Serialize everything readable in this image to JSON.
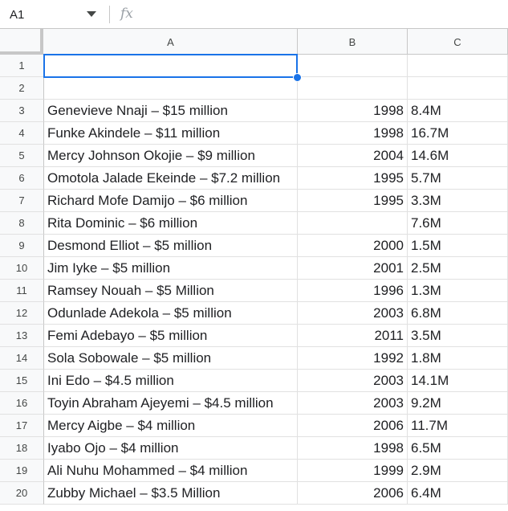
{
  "name_box": {
    "value": "A1"
  },
  "formula_bar": {
    "fx_label": "fx",
    "value": ""
  },
  "columns": [
    "A",
    "B",
    "C"
  ],
  "rows": [
    {
      "num": "1",
      "a": "",
      "b": "",
      "c": ""
    },
    {
      "num": "2",
      "a": "",
      "b": "",
      "c": ""
    },
    {
      "num": "3",
      "a": "Genevieve Nnaji – $15 million",
      "b": "1998",
      "c": "8.4M"
    },
    {
      "num": "4",
      "a": "Funke Akindele – $11 million",
      "b": "1998",
      "c": "16.7M"
    },
    {
      "num": "5",
      "a": "Mercy Johnson Okojie – $9 million",
      "b": "2004",
      "c": "14.6M"
    },
    {
      "num": "6",
      "a": "Omotola Jalade Ekeinde – $7.2 million",
      "b": "1995",
      "c": "5.7M"
    },
    {
      "num": "7",
      "a": "Richard Mofe Damijo – $6 million",
      "b": "1995",
      "c": "3.3M"
    },
    {
      "num": "8",
      "a": "Rita Dominic – $6 million",
      "b": "",
      "c": "7.6M"
    },
    {
      "num": "9",
      "a": "Desmond Elliot – $5 million",
      "b": "2000",
      "c": "1.5M"
    },
    {
      "num": "10",
      "a": "Jim Iyke – $5 million",
      "b": "2001",
      "c": "2.5M"
    },
    {
      "num": "11",
      "a": "Ramsey Nouah – $5 Million",
      "b": "1996",
      "c": "1.3M"
    },
    {
      "num": "12",
      "a": "Odunlade Adekola – $5 million",
      "b": "2003",
      "c": "6.8M"
    },
    {
      "num": "13",
      "a": "Femi Adebayo – $5 million",
      "b": "2011",
      "c": "3.5M"
    },
    {
      "num": "14",
      "a": "Sola Sobowale – $5 million",
      "b": "1992",
      "c": "1.8M"
    },
    {
      "num": "15",
      "a": "Ini Edo – $4.5 million",
      "b": "2003",
      "c": "14.1M"
    },
    {
      "num": "16",
      "a": "Toyin Abraham Ajeyemi – $4.5 million",
      "b": "2003",
      "c": "9.2M"
    },
    {
      "num": "17",
      "a": "Mercy Aigbe – $4 million",
      "b": "2006",
      "c": "11.7M"
    },
    {
      "num": "18",
      "a": "Iyabo Ojo – $4 million",
      "b": "1998",
      "c": "6.5M"
    },
    {
      "num": "19",
      "a": "Ali Nuhu Mohammed – $4 million",
      "b": "1999",
      "c": "2.9M"
    },
    {
      "num": "20",
      "a": "Zubby Michael –  $3.5 Million",
      "b": "2006",
      "c": "6.4M"
    }
  ],
  "colors": {
    "selection": "#1a73e8",
    "header_bg": "#f8f9fa",
    "gridline": "#e1e1e1"
  }
}
